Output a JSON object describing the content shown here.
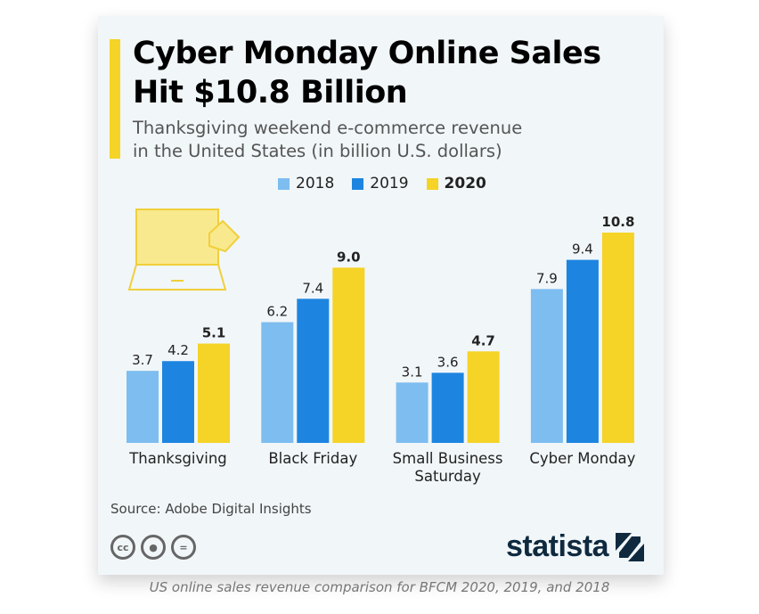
{
  "chart_data": {
    "type": "bar",
    "title": "Cyber Monday Online Sales Hit $10.8 Billion",
    "subtitle": [
      "Thanksgiving weekend e-commerce revenue",
      "in the United States (in billion U.S. dollars)"
    ],
    "categories": [
      [
        "Thanksgiving"
      ],
      [
        "Black Friday"
      ],
      [
        "Small Business",
        "Saturday"
      ],
      [
        "Cyber Monday"
      ]
    ],
    "series": [
      {
        "name": "2018",
        "color": "#7dbdf0",
        "values": [
          3.7,
          6.2,
          3.1,
          7.9
        ],
        "labels": [
          "3.7",
          "6.2",
          "3.1",
          "7.9"
        ]
      },
      {
        "name": "2019",
        "color": "#1d85e0",
        "values": [
          4.2,
          7.4,
          3.6,
          9.4
        ],
        "labels": [
          "4.2",
          "7.4",
          "3.6",
          "9.4"
        ]
      },
      {
        "name": "2020",
        "color": "#f5d327",
        "values": [
          5.1,
          9.0,
          4.7,
          10.8
        ],
        "labels": [
          "5.1",
          "9.0",
          "4.7",
          "10.8"
        ]
      }
    ],
    "ylim": [
      0,
      10.8
    ],
    "grid": false,
    "legend": "top"
  },
  "source": "Source: Adobe Digital Insights",
  "license_icons": [
    "cc-icon",
    "attribution-icon",
    "no-derivatives-icon"
  ],
  "logo": "statista",
  "caption": "US online sales revenue comparison for BFCM 2020, 2019, and 2018"
}
